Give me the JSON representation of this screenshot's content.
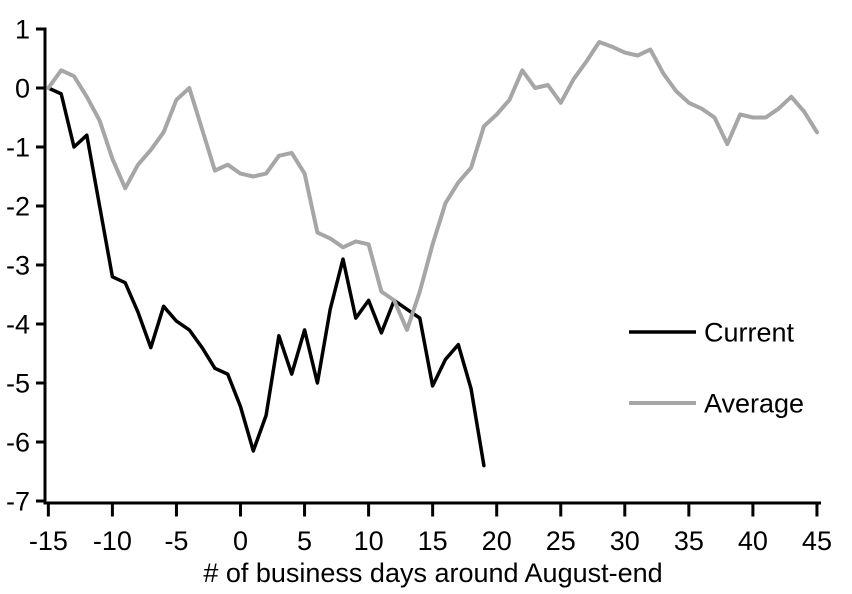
{
  "chart_data": {
    "type": "line",
    "title": "",
    "xlabel": "# of business days around August-end",
    "ylabel": "",
    "xlim": [
      -15,
      45
    ],
    "ylim": [
      -7,
      1
    ],
    "grid": false,
    "legend_position": "right-middle",
    "xticks": [
      -15,
      -10,
      -5,
      0,
      5,
      10,
      15,
      20,
      25,
      30,
      35,
      40,
      45
    ],
    "yticks": [
      1,
      0,
      -1,
      -2,
      -3,
      -4,
      -5,
      -6,
      -7
    ],
    "series": [
      {
        "name": "Current",
        "color": "#000000",
        "stroke_width": 3.5,
        "x_start": -15,
        "values": [
          0.0,
          -0.1,
          -1.0,
          -0.8,
          -2.0,
          -3.2,
          -3.3,
          -3.8,
          -4.4,
          -3.7,
          -3.95,
          -4.1,
          -4.4,
          -4.75,
          -4.85,
          -5.4,
          -6.15,
          -5.55,
          -4.2,
          -4.85,
          -4.1,
          -5.0,
          -3.75,
          -2.9,
          -3.9,
          -3.6,
          -4.15,
          -3.6,
          -3.75,
          -3.9,
          -5.05,
          -4.6,
          -4.35,
          -5.1,
          -6.4
        ]
      },
      {
        "name": "Average",
        "color": "#A6A6A6",
        "stroke_width": 4,
        "x_start": -15,
        "values": [
          0.0,
          0.3,
          0.2,
          -0.15,
          -0.55,
          -1.2,
          -1.7,
          -1.3,
          -1.05,
          -0.75,
          -0.2,
          0.0,
          -0.7,
          -1.4,
          -1.3,
          -1.45,
          -1.5,
          -1.45,
          -1.15,
          -1.1,
          -1.45,
          -2.45,
          -2.55,
          -2.7,
          -2.6,
          -2.65,
          -3.45,
          -3.6,
          -4.1,
          -3.45,
          -2.65,
          -1.95,
          -1.6,
          -1.35,
          -0.65,
          -0.45,
          -0.2,
          0.3,
          0.0,
          0.05,
          -0.25,
          0.15,
          0.45,
          0.78,
          0.7,
          0.6,
          0.55,
          0.65,
          0.25,
          -0.05,
          -0.25,
          -0.35,
          -0.5,
          -0.95,
          -0.45,
          -0.5,
          -0.5,
          -0.35,
          -0.15,
          -0.4,
          -0.75
        ]
      }
    ],
    "legend": [
      {
        "label": "Current"
      },
      {
        "label": "Average"
      }
    ]
  }
}
